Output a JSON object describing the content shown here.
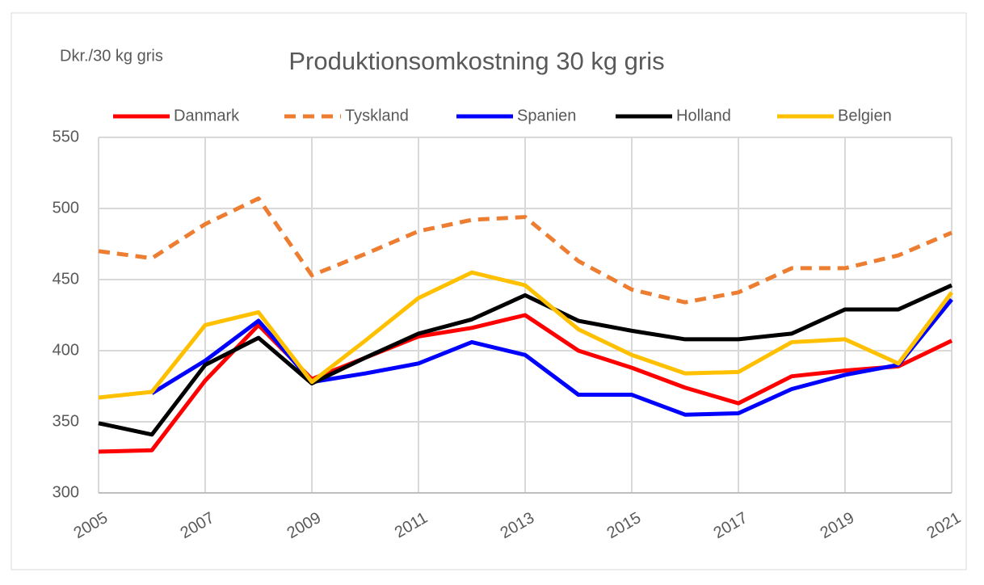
{
  "chart_data": {
    "type": "line",
    "title": "Produktionsomkostning 30 kg gris",
    "y_label": "Dkr./30 kg gris",
    "x": [
      2005,
      2006,
      2007,
      2008,
      2009,
      2010,
      2011,
      2012,
      2013,
      2014,
      2015,
      2016,
      2017,
      2018,
      2019,
      2020,
      2021
    ],
    "xlim": [
      2005,
      2021
    ],
    "xticks": [
      2005,
      2007,
      2009,
      2011,
      2013,
      2015,
      2017,
      2019,
      2021
    ],
    "ylim": [
      300,
      550
    ],
    "yticks": [
      300,
      350,
      400,
      450,
      500,
      550
    ],
    "grid": true,
    "legend": "top",
    "series": [
      {
        "name": "Danmark",
        "color": "#ff0000",
        "style": "solid",
        "values": [
          329,
          330,
          379,
          418,
          380,
          395,
          410,
          416,
          425,
          400,
          388,
          374,
          363,
          382,
          386,
          389,
          407
        ]
      },
      {
        "name": "Tyskland",
        "color": "#ed7d31",
        "style": "dashed",
        "values": [
          470,
          465,
          489,
          507,
          453,
          468,
          484,
          492,
          494,
          463,
          443,
          434,
          441,
          458,
          458,
          467,
          483
        ]
      },
      {
        "name": "Spanien",
        "color": "#0000ff",
        "style": "solid",
        "values": [
          null,
          370,
          393,
          421,
          378,
          384,
          391,
          406,
          397,
          369,
          369,
          355,
          356,
          373,
          383,
          390,
          436
        ]
      },
      {
        "name": "Holland",
        "color": "#000000",
        "style": "solid",
        "values": [
          349,
          341,
          390,
          409,
          377,
          395,
          412,
          422,
          439,
          421,
          414,
          408,
          408,
          412,
          429,
          429,
          446
        ]
      },
      {
        "name": "Belgien",
        "color": "#ffc000",
        "style": "solid",
        "values": [
          367,
          371,
          418,
          427,
          378,
          407,
          437,
          455,
          446,
          415,
          397,
          384,
          385,
          406,
          408,
          391,
          441
        ]
      }
    ]
  }
}
